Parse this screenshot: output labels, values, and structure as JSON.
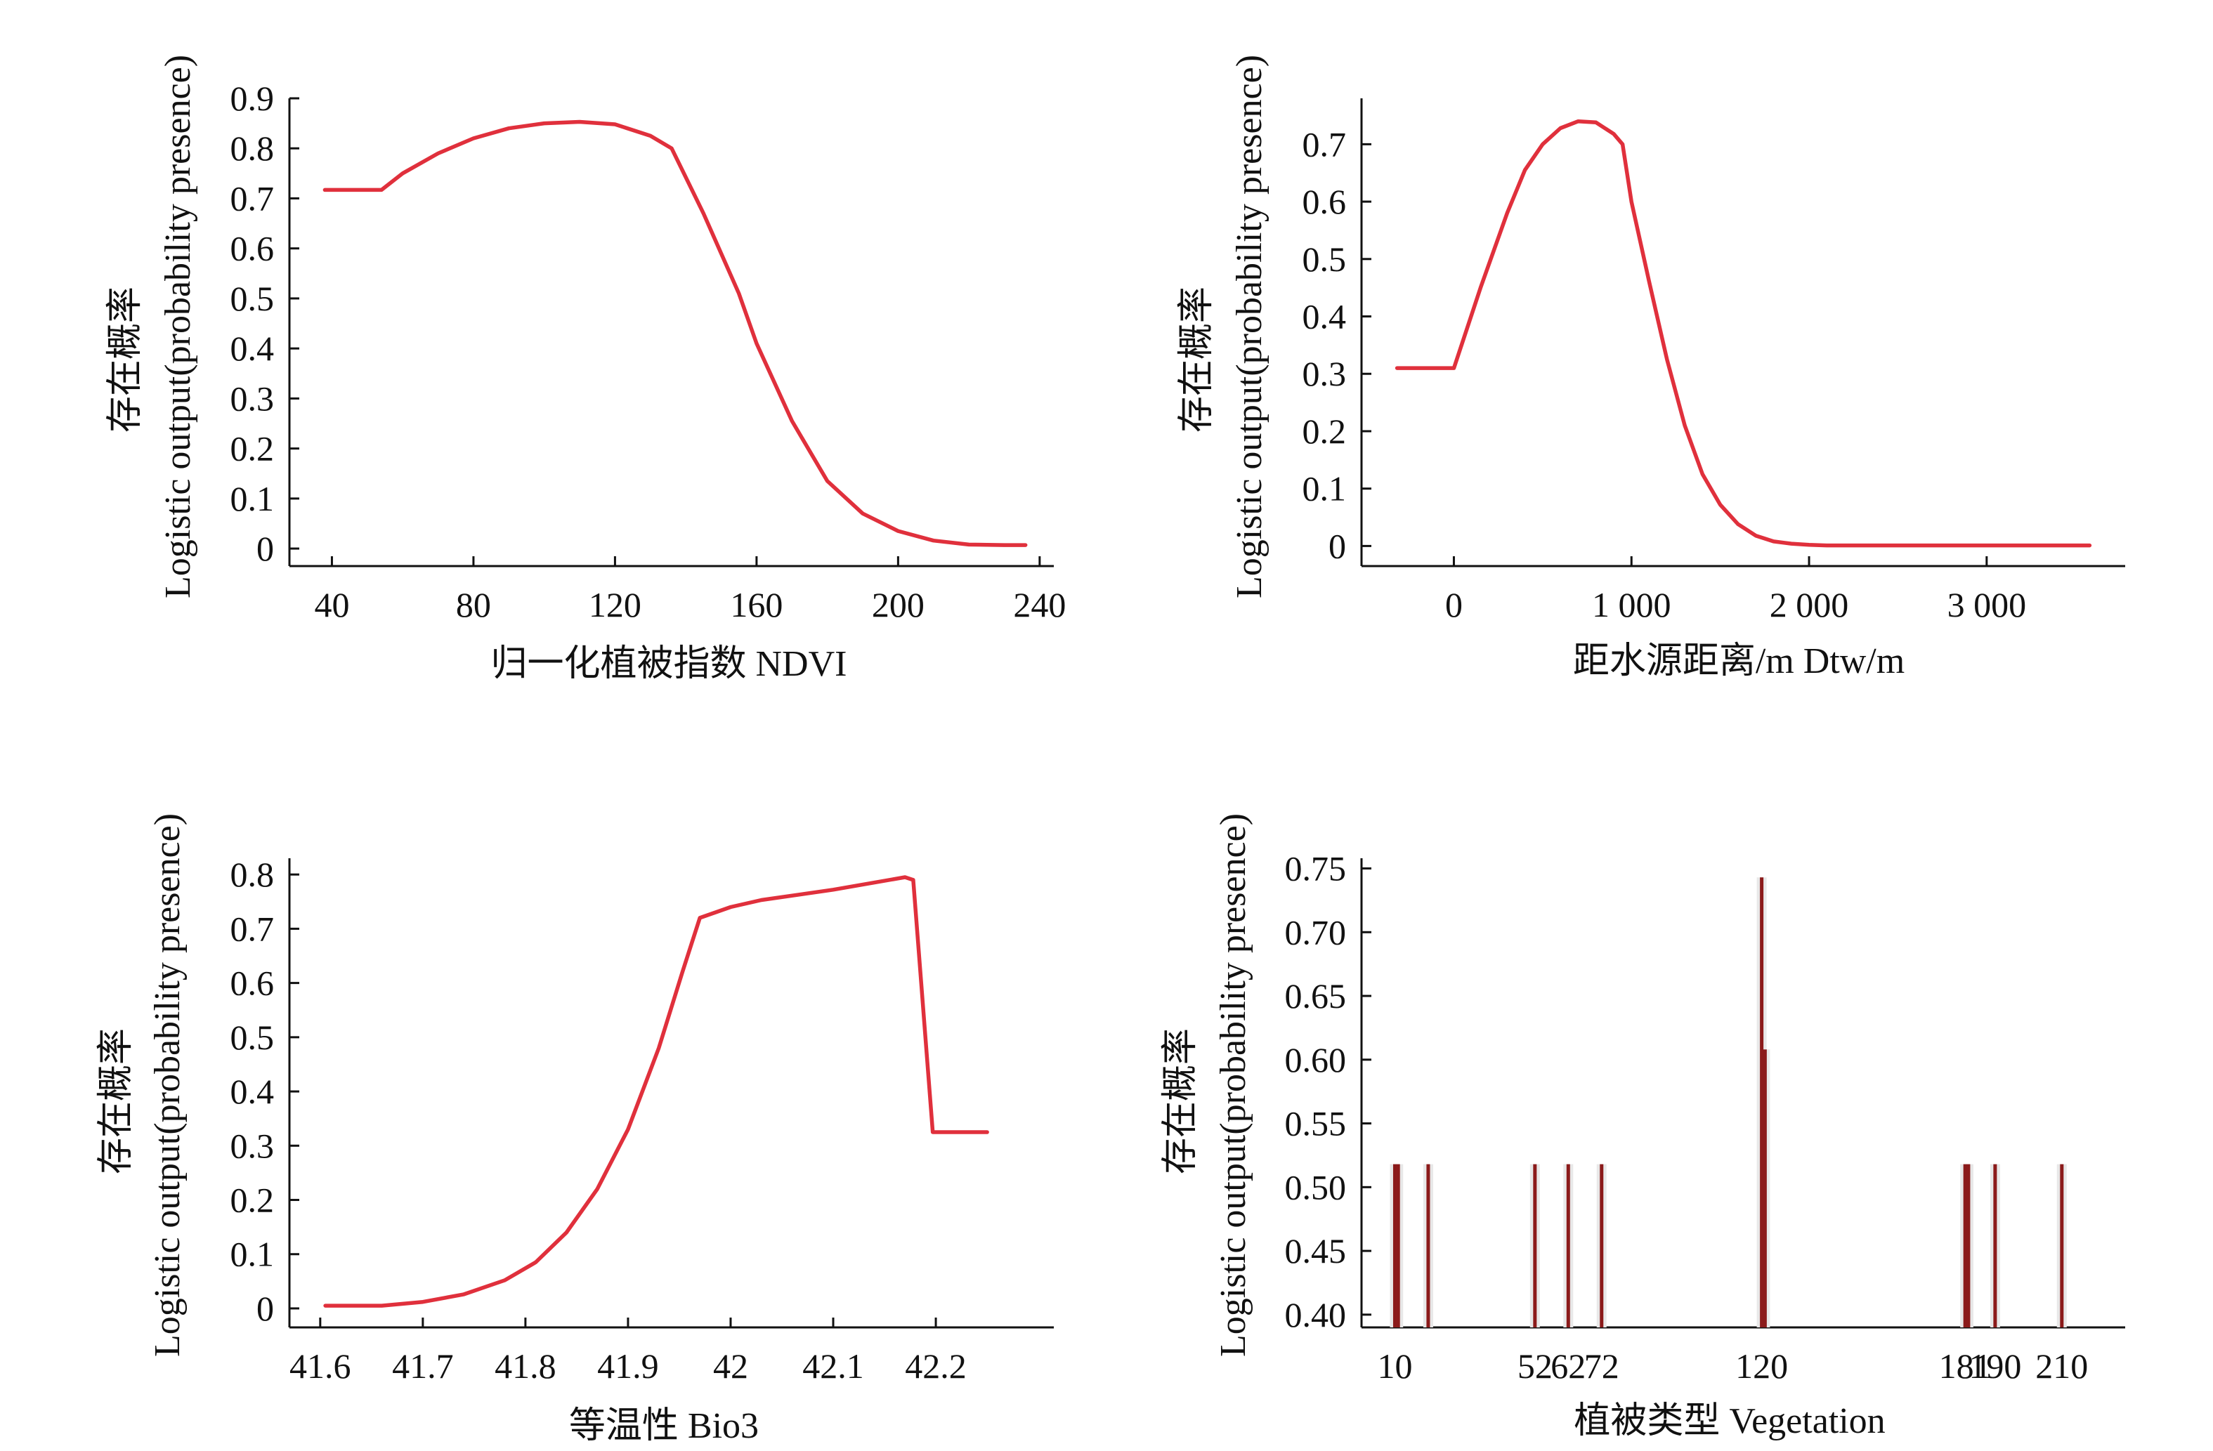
{
  "colors": {
    "curve": "#e0303c",
    "curve_dark": "#8b1a1a",
    "axis": "#111111"
  },
  "chart_data": [
    {
      "type": "line",
      "xlabel": "归一化植被指数 NDVI",
      "ylabel_cn": "存在概率",
      "ylabel_en": "Logistic output(probability presence)",
      "xlim": [
        28,
        244
      ],
      "ylim": [
        -0.035,
        0.9
      ],
      "xticks": [
        40,
        80,
        120,
        160,
        200,
        240
      ],
      "yticks": [
        0,
        0.1,
        0.2,
        0.3,
        0.4,
        0.5,
        0.6,
        0.7,
        0.8,
        0.9
      ],
      "series": [
        {
          "x": [
            38,
            54,
            60,
            70,
            80,
            90,
            100,
            110,
            120,
            130,
            136,
            145,
            155,
            160,
            170,
            180,
            190,
            200,
            210,
            220,
            230,
            236
          ],
          "y": [
            0.717,
            0.717,
            0.75,
            0.79,
            0.82,
            0.84,
            0.85,
            0.853,
            0.848,
            0.825,
            0.8,
            0.67,
            0.51,
            0.41,
            0.255,
            0.135,
            0.07,
            0.035,
            0.016,
            0.008,
            0.007,
            0.007
          ]
        }
      ]
    },
    {
      "type": "line",
      "xlabel": "距水源距离/m Dtw/m",
      "ylabel_cn": "存在概率",
      "ylabel_en": "Logistic output(probability presence)",
      "xlim": [
        -520,
        3780
      ],
      "ylim": [
        -0.035,
        0.78
      ],
      "xticks": [
        0,
        1000,
        2000,
        3000
      ],
      "xtick_labels": [
        "0",
        "1 000",
        "2 000",
        "3 000"
      ],
      "yticks": [
        0,
        0.1,
        0.2,
        0.3,
        0.4,
        0.5,
        0.6,
        0.7
      ],
      "series": [
        {
          "x": [
            -320,
            0,
            150,
            300,
            400,
            500,
            600,
            700,
            800,
            900,
            950,
            1000,
            1100,
            1200,
            1300,
            1400,
            1500,
            1600,
            1700,
            1800,
            1900,
            2000,
            2100,
            3580
          ],
          "y": [
            0.31,
            0.31,
            0.45,
            0.58,
            0.655,
            0.7,
            0.728,
            0.74,
            0.738,
            0.718,
            0.7,
            0.6,
            0.46,
            0.325,
            0.21,
            0.125,
            0.072,
            0.038,
            0.018,
            0.008,
            0.004,
            0.002,
            0.001,
            0.001
          ]
        }
      ]
    },
    {
      "type": "line",
      "xlabel": "等温性 Bio3",
      "ylabel_cn": "存在概率",
      "ylabel_en": "Logistic output(probability presence)",
      "xlim": [
        41.57,
        42.315
      ],
      "ylim": [
        -0.035,
        0.83
      ],
      "xticks": [
        41.6,
        41.7,
        41.8,
        41.9,
        42.0,
        42.1,
        42.2
      ],
      "yticks": [
        0,
        0.1,
        0.2,
        0.3,
        0.4,
        0.5,
        0.6,
        0.7,
        0.8
      ],
      "series": [
        {
          "x": [
            41.605,
            41.66,
            41.7,
            41.74,
            41.78,
            41.81,
            41.84,
            41.87,
            41.9,
            41.93,
            41.953,
            41.97,
            42.0,
            42.03,
            42.1,
            42.17,
            42.178,
            42.197,
            42.25
          ],
          "y": [
            0.005,
            0.005,
            0.012,
            0.026,
            0.052,
            0.085,
            0.14,
            0.22,
            0.33,
            0.48,
            0.62,
            0.72,
            0.74,
            0.753,
            0.772,
            0.795,
            0.79,
            0.325,
            0.325
          ]
        }
      ]
    },
    {
      "type": "bar",
      "xlabel": "植被类型 Vegetation",
      "ylabel_cn": "存在概率",
      "ylabel_en": "Logistic output(probability presence)",
      "xlim": [
        0,
        229
      ],
      "ylim": [
        0.39,
        0.758
      ],
      "xtick_labels": [
        "10",
        "52",
        "62",
        "72",
        "120",
        "181",
        "190",
        "210"
      ],
      "xticks": [
        10,
        52,
        62,
        72,
        120,
        181,
        190,
        210
      ],
      "yticks": [
        0.4,
        0.45,
        0.5,
        0.55,
        0.6,
        0.65,
        0.7,
        0.75
      ],
      "ytick_labels": [
        "0.40",
        "0.45",
        "0.50",
        "0.55",
        "0.60",
        "0.65",
        "0.70",
        "0.75"
      ],
      "bars": [
        {
          "x": 10,
          "value": 0.518
        },
        {
          "x": 11,
          "value": 0.518
        },
        {
          "x": 20,
          "value": 0.518
        },
        {
          "x": 52,
          "value": 0.518
        },
        {
          "x": 62,
          "value": 0.518
        },
        {
          "x": 72,
          "value": 0.518
        },
        {
          "x": 120,
          "value": 0.743
        },
        {
          "x": 121,
          "value": 0.608
        },
        {
          "x": 181,
          "value": 0.518
        },
        {
          "x": 182,
          "value": 0.518
        },
        {
          "x": 190,
          "value": 0.518
        },
        {
          "x": 210,
          "value": 0.518
        }
      ]
    }
  ]
}
